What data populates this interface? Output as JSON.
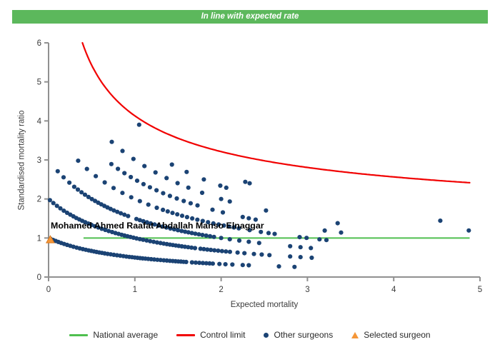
{
  "banner": {
    "text": "In line with expected rate",
    "color": "#5cb85c",
    "text_color": "#ffffff"
  },
  "chart_data": {
    "type": "scatter",
    "xlabel": "Expected mortality",
    "ylabel": "Standardised mortality ratio",
    "xlim": [
      0,
      5
    ],
    "ylim": [
      0,
      6
    ],
    "xticks": [
      0,
      1,
      2,
      3,
      4,
      5
    ],
    "yticks": [
      0,
      1,
      2,
      3,
      4,
      5,
      6
    ],
    "grid": false,
    "axis_color": "#909090",
    "tick_label_color": "#3b3b3b",
    "national_average": {
      "label": "National average",
      "y": 1,
      "x_start": 0.405,
      "x_end": 4.88,
      "color": "#4fbf4f"
    },
    "control_limit": {
      "label": "Control limit",
      "formula": "smr = 1 + a / sqrt(expected)",
      "a": 3.13,
      "x_start": 0.392,
      "x_end": 4.88,
      "color": "#f10000"
    },
    "other_surgeons": {
      "label": "Other surgeons",
      "color": "#1b4374",
      "point_radius": 3.1,
      "model": "smr = deaths / (1 + expected)",
      "bands": [
        {
          "deaths": 1,
          "segments": [
            {
              "from": 0.02,
              "to": 1.6,
              "count": 48
            },
            {
              "from": 1.66,
              "to": 1.9,
              "count": 7
            }
          ],
          "extra": [
            1.98,
            2.05,
            2.13,
            2.25,
            2.32,
            2.67,
            2.85
          ]
        },
        {
          "deaths": 2,
          "segments": [
            {
              "from": 0.02,
              "to": 1.7,
              "count": 46
            },
            {
              "from": 1.76,
              "to": 2.1,
              "count": 9
            }
          ],
          "extra": [
            2.19,
            2.27,
            2.38,
            2.47,
            2.56,
            2.8,
            2.92,
            3.05
          ]
        },
        {
          "deaths": 3,
          "segments": [
            {
              "from": 0.1,
              "to": 0.24,
              "count": 3
            },
            {
              "from": 0.3,
              "to": 0.92,
              "count": 17
            },
            {
              "from": 1.02,
              "to": 1.92,
              "count": 22
            }
          ],
          "extra": [
            2.0,
            2.1,
            2.21,
            2.32,
            2.44,
            2.8,
            2.92,
            3.04
          ]
        },
        {
          "deaths": 4,
          "segments": [
            {
              "from": 0.35,
              "to": 1.25,
              "count": 10
            },
            {
              "from": 1.32,
              "to": 2.2,
              "count": 16
            }
          ],
          "extra": [
            2.33,
            2.46,
            2.55,
            2.62,
            2.91,
            2.99,
            3.14,
            3.22
          ]
        },
        {
          "deaths": 5,
          "segments": [
            {
              "from": 0.72,
              "to": 1.72,
              "count": 14
            }
          ],
          "extra": [
            1.9,
            2.02,
            2.25,
            2.32,
            2.4,
            3.2,
            3.39
          ]
        },
        {
          "deaths": 6,
          "segments": [
            {
              "from": 0.74,
              "to": 1.49,
              "count": 7
            }
          ],
          "extra": [
            1.62,
            1.78,
            2.0,
            2.1,
            2.52,
            3.35
          ]
        },
        {
          "deaths": 7,
          "segments": [],
          "extra": [
            1.43,
            1.6,
            1.8,
            1.99,
            2.06,
            4.87
          ]
        },
        {
          "deaths": 8,
          "segments": [],
          "extra": [
            1.05,
            2.28,
            2.33,
            4.54
          ]
        }
      ]
    },
    "selected_surgeon": {
      "label": "Selected surgeon",
      "name": "Mohamed Ahmed Raafat Abdallah Manso Elnaggar",
      "expected": 0.02,
      "smr": 0.96,
      "color": "#f59638"
    }
  },
  "legend": {
    "items": [
      {
        "label": "National average",
        "type": "line",
        "color": "#4fbf4f"
      },
      {
        "label": "Control limit",
        "type": "line",
        "color": "#f10000"
      },
      {
        "label": "Other surgeons",
        "type": "dot",
        "color": "#1b4374"
      },
      {
        "label": "Selected surgeon",
        "type": "triangle",
        "color": "#f59638"
      }
    ]
  }
}
